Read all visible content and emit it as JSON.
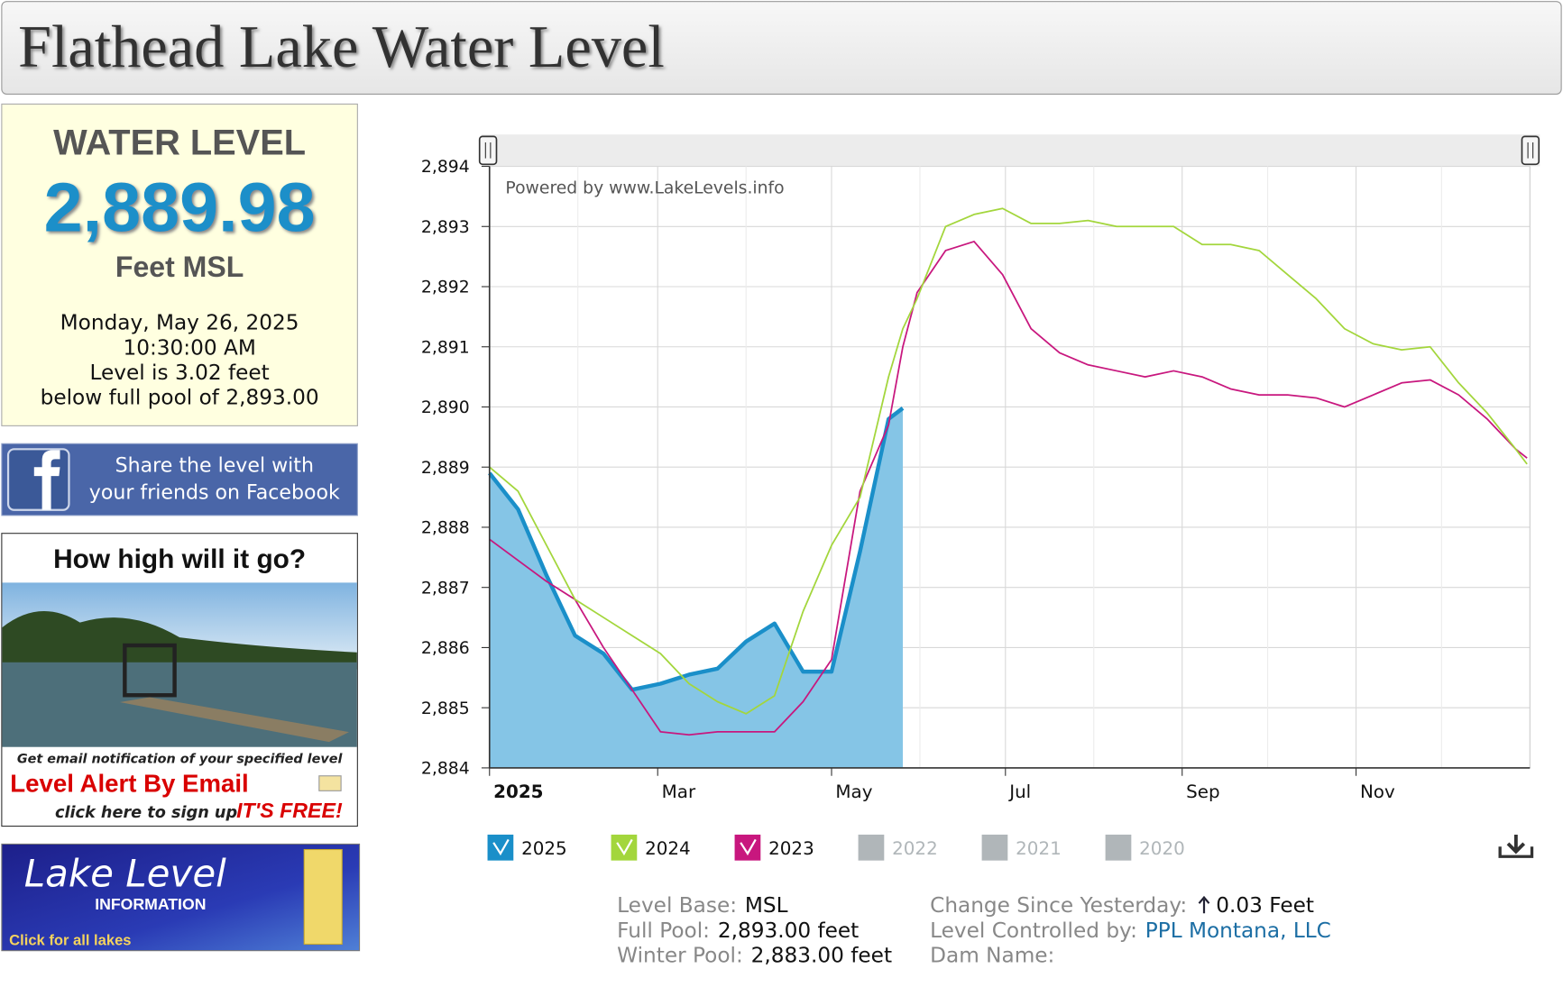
{
  "header": {
    "title": "Flathead Lake Water Level"
  },
  "sidebar": {
    "heading": "WATER LEVEL",
    "level": "2,889.98",
    "unit": "Feet MSL",
    "date": "Monday, May 26, 2025",
    "time": "10:30:00 AM",
    "status_line1": "Level is 3.02 feet",
    "status_line2": "below full pool of 2,893.00",
    "facebook_line1": "Share the level with",
    "facebook_line2": "your friends on Facebook",
    "ad_heading": "How high will it go?",
    "ad_note": "Get email notification of your specified level",
    "ad_title": "Level Alert By Email",
    "ad_signup": "click here to sign up",
    "ad_free": "IT'S FREE!",
    "banner_title": "Lake Level",
    "banner_subtitle": "INFORMATION",
    "banner_link": "Click for all lakes"
  },
  "chart_data": {
    "type": "line",
    "watermark": "Powered by www.LakeLevels.info",
    "xlim": [
      0,
      365
    ],
    "xticks": [
      {
        "value": 0,
        "label": "2025"
      },
      {
        "value": 59,
        "label": "Mar"
      },
      {
        "value": 120,
        "label": "May"
      },
      {
        "value": 181,
        "label": "Jul"
      },
      {
        "value": 243,
        "label": "Sep"
      },
      {
        "value": 304,
        "label": "Nov"
      }
    ],
    "x_minor_gridlines": [
      31,
      90,
      151,
      212,
      273,
      334
    ],
    "ylim": [
      2884,
      2894
    ],
    "yticks": [
      {
        "value": 2884,
        "label": "2,884"
      },
      {
        "value": 2885,
        "label": "2,885"
      },
      {
        "value": 2886,
        "label": "2,886"
      },
      {
        "value": 2887,
        "label": "2,887"
      },
      {
        "value": 2888,
        "label": "2,888"
      },
      {
        "value": 2889,
        "label": "2,889"
      },
      {
        "value": 2890,
        "label": "2,890"
      },
      {
        "value": 2891,
        "label": "2,891"
      },
      {
        "value": 2892,
        "label": "2,892"
      },
      {
        "value": 2893,
        "label": "2,893"
      },
      {
        "value": 2894,
        "label": "2,894"
      }
    ],
    "grid": true,
    "x": [
      0,
      10,
      20,
      30,
      40,
      50,
      60,
      70,
      80,
      90,
      100,
      110,
      120,
      130,
      140,
      145,
      150,
      160,
      170,
      180,
      190,
      200,
      210,
      220,
      230,
      240,
      250,
      260,
      270,
      280,
      290,
      300,
      310,
      320,
      330,
      340,
      350,
      360,
      364
    ],
    "series": [
      {
        "name": "2025",
        "color": "#1a8fc9",
        "area_color": "#85c5e6",
        "area": true,
        "values": [
          2888.9,
          2888.3,
          2887.2,
          2886.2,
          2885.9,
          2885.3,
          2885.4,
          2885.55,
          2885.65,
          2886.1,
          2886.4,
          2885.6,
          2885.6,
          2887.6,
          2889.8,
          2889.98,
          null,
          null,
          null,
          null,
          null,
          null,
          null,
          null,
          null,
          null,
          null,
          null,
          null,
          null,
          null,
          null,
          null,
          null,
          null,
          null,
          null,
          null,
          null
        ]
      },
      {
        "name": "2024",
        "color": "#a3d63c",
        "area": false,
        "values": [
          2889.0,
          2888.6,
          2887.7,
          2886.8,
          2886.5,
          2886.2,
          2885.9,
          2885.4,
          2885.1,
          2884.9,
          2885.2,
          2886.6,
          2887.7,
          2888.5,
          2890.5,
          2891.3,
          2891.8,
          2893.0,
          2893.2,
          2893.3,
          2893.05,
          2893.05,
          2893.1,
          2893.0,
          2893.0,
          2893.0,
          2892.7,
          2892.7,
          2892.6,
          2892.2,
          2891.8,
          2891.3,
          2891.05,
          2890.95,
          2891.0,
          2890.4,
          2889.9,
          2889.3,
          2889.05
        ]
      },
      {
        "name": "2023",
        "color": "#c8177e",
        "area": false,
        "values": [
          2887.8,
          2887.45,
          2887.1,
          2886.8,
          2886.0,
          2885.3,
          2884.6,
          2884.55,
          2884.6,
          2884.6,
          2884.6,
          2885.1,
          2885.8,
          2888.6,
          2889.7,
          2891.0,
          2891.9,
          2892.6,
          2892.75,
          2892.2,
          2891.3,
          2890.9,
          2890.7,
          2890.6,
          2890.5,
          2890.6,
          2890.5,
          2890.3,
          2890.2,
          2890.2,
          2890.15,
          2890.0,
          2890.2,
          2890.4,
          2890.45,
          2890.2,
          2889.8,
          2889.3,
          2889.15
        ]
      }
    ],
    "inactive_series": [
      {
        "name": "2022"
      },
      {
        "name": "2021"
      },
      {
        "name": "2020"
      }
    ],
    "inactive_color": "#b0b6b9"
  },
  "info": {
    "level_base_label": "Level Base:",
    "level_base": "MSL",
    "full_pool_label": "Full Pool:",
    "full_pool": "2,893.00 feet",
    "winter_pool_label": "Winter Pool:",
    "winter_pool": "2,883.00 feet",
    "change_label": "Change Since Yesterday:",
    "change": "0.03 Feet",
    "controlled_label": "Level Controlled by:",
    "controlled": "PPL Montana, LLC",
    "dam_label": "Dam Name:"
  }
}
